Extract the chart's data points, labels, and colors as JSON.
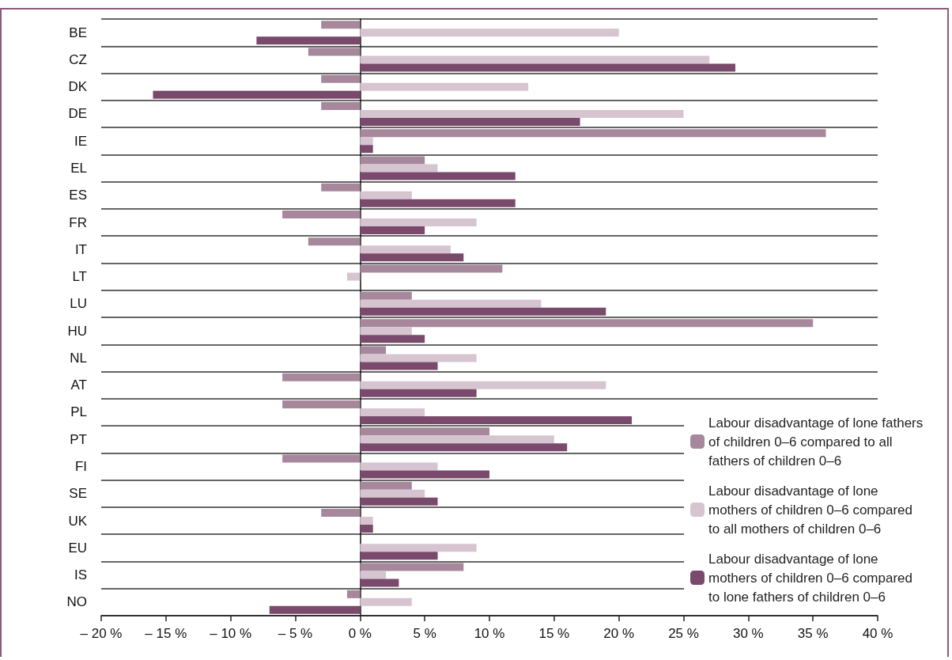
{
  "chart_data": {
    "type": "bar",
    "orientation": "horizontal",
    "categories": [
      "BE",
      "CZ",
      "DK",
      "DE",
      "IE",
      "EL",
      "ES",
      "FR",
      "IT",
      "LT",
      "LU",
      "HU",
      "NL",
      "AT",
      "PL",
      "PT",
      "FI",
      "SE",
      "UK",
      "EU",
      "IS",
      "NO"
    ],
    "series": [
      {
        "name": "Labour disadvantage of lone fathers of children 0–6 compared to all fathers of children 0–6",
        "color": "#a6879c",
        "values": [
          -3,
          -4,
          -3,
          -3,
          36,
          5,
          -3,
          -6,
          -4,
          11,
          4,
          35,
          2,
          -6,
          -6,
          10,
          -6,
          4,
          -3,
          null,
          8,
          -1
        ]
      },
      {
        "name": "Labour disadvantage of lone mothers of children 0–6 compared to all mothers of children 0–6",
        "color": "#d6c5d1",
        "values": [
          20,
          27,
          13,
          25,
          1,
          6,
          4,
          9,
          7,
          -1,
          14,
          4,
          9,
          19,
          5,
          15,
          6,
          5,
          1,
          9,
          2,
          4
        ]
      },
      {
        "name": "Labour disadvantage of lone mothers of children 0–6 compared to lone fathers of children 0–6",
        "color": "#794a6b",
        "values": [
          -8,
          29,
          -16,
          17,
          1,
          12,
          12,
          5,
          8,
          null,
          19,
          5,
          6,
          9,
          21,
          16,
          10,
          6,
          1,
          6,
          3,
          -7
        ]
      }
    ],
    "xlim": [
      -20,
      40
    ],
    "xticks": [
      {
        "value": -20,
        "label": "– 20 %"
      },
      {
        "value": -15,
        "label": "– 15 %"
      },
      {
        "value": -10,
        "label": "– 10 %"
      },
      {
        "value": -5,
        "label": "– 5 %"
      },
      {
        "value": 0,
        "label": "0 %"
      },
      {
        "value": 5,
        "label": "5 %"
      },
      {
        "value": 10,
        "label": "10 %"
      },
      {
        "value": 15,
        "label": "15 %"
      },
      {
        "value": 20,
        "label": "20 %"
      },
      {
        "value": 25,
        "label": "25 %"
      },
      {
        "value": 30,
        "label": "30 %"
      },
      {
        "value": 35,
        "label": "35 %"
      },
      {
        "value": 40,
        "label": "40 %"
      }
    ],
    "grid": "y",
    "legend": "bottom right"
  }
}
